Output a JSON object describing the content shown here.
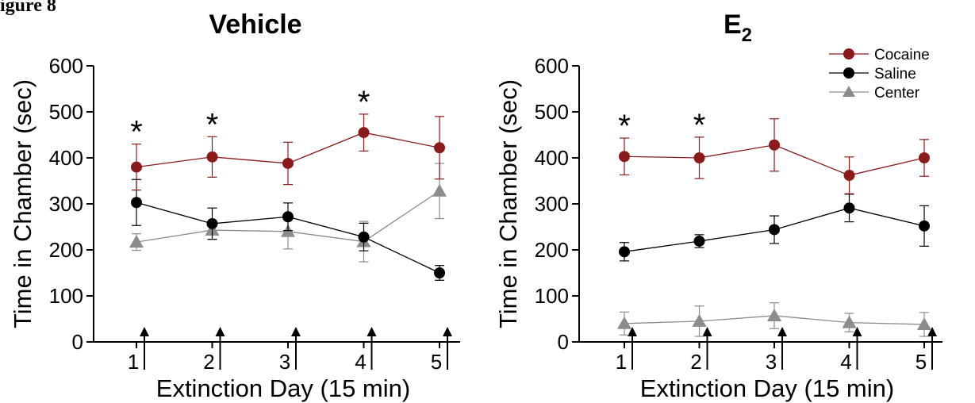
{
  "figure_label": "igure 8",
  "colors": {
    "cocaine": "#8b1a1a",
    "saline": "#000000",
    "center": "#8c8c8c"
  },
  "legend": {
    "position": "top-right",
    "items": [
      "Cocaine",
      "Saline",
      "Center"
    ]
  },
  "chart_data": [
    {
      "type": "line",
      "title": "Vehicle",
      "xlabel": "Extinction Day (15 min)",
      "ylabel": "Time in Chamber (sec)",
      "x": [
        1,
        2,
        3,
        4,
        5
      ],
      "x_tick_labels": [
        "1",
        "2",
        "3",
        "4",
        "5"
      ],
      "ylim": [
        0,
        600
      ],
      "y_ticks": [
        0,
        100,
        200,
        300,
        400,
        500,
        600
      ],
      "series": [
        {
          "name": "Cocaine",
          "values": [
            380,
            402,
            388,
            455,
            422
          ],
          "errors": [
            50,
            44,
            46,
            40,
            68
          ]
        },
        {
          "name": "Saline",
          "values": [
            303,
            257,
            272,
            228,
            150
          ],
          "errors": [
            50,
            34,
            30,
            30,
            16
          ]
        },
        {
          "name": "Center",
          "values": [
            217,
            243,
            240,
            218,
            328
          ],
          "errors": [
            18,
            20,
            38,
            44,
            60
          ]
        }
      ],
      "significance": [
        "*",
        "*",
        "",
        "*",
        ""
      ],
      "arrows": [
        1,
        2,
        3,
        4,
        5
      ]
    },
    {
      "type": "line",
      "title": "E",
      "title_subscript": "2",
      "xlabel": "Extinction Day (15 min)",
      "ylabel": "Time in Chamber (sec)",
      "x": [
        1,
        2,
        3,
        4,
        5
      ],
      "x_tick_labels": [
        "1",
        "2",
        "3",
        "4",
        "5"
      ],
      "ylim": [
        0,
        600
      ],
      "y_ticks": [
        0,
        100,
        200,
        300,
        400,
        500,
        600
      ],
      "series": [
        {
          "name": "Cocaine",
          "values": [
            403,
            400,
            428,
            362,
            400
          ],
          "errors": [
            40,
            45,
            57,
            40,
            40
          ]
        },
        {
          "name": "Saline",
          "values": [
            196,
            219,
            244,
            291,
            252
          ],
          "errors": [
            20,
            14,
            30,
            30,
            44
          ]
        },
        {
          "name": "Center",
          "values": [
            40,
            45,
            57,
            42,
            38
          ],
          "errors": [
            25,
            33,
            28,
            20,
            26
          ]
        }
      ],
      "significance": [
        "*",
        "*",
        "",
        "",
        ""
      ],
      "arrows": [
        1,
        2,
        3,
        4,
        5
      ]
    }
  ]
}
